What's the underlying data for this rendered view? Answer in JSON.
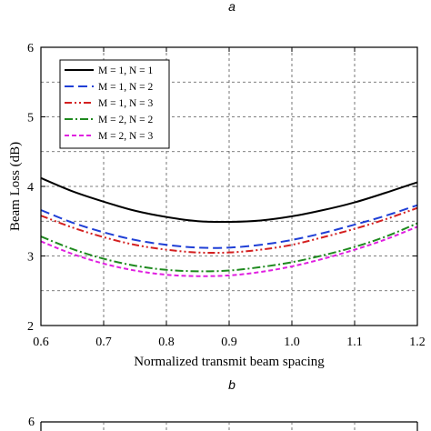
{
  "panel_labels": {
    "top": "a",
    "bottom": "b"
  },
  "chart_data": [
    {
      "type": "line",
      "title": "",
      "xlabel": "Normalized transmit beam spacing",
      "ylabel": "Beam Loss (dB)",
      "xlim": [
        0.6,
        1.2
      ],
      "ylim": [
        2,
        6
      ],
      "xticks": [
        "0.6",
        "0.7",
        "0.8",
        "0.9",
        "1.0",
        "1.1",
        "1.2"
      ],
      "yticks": [
        "2",
        "3",
        "4",
        "5",
        "6"
      ],
      "grid": true,
      "legend_position": "top-left",
      "series": [
        {
          "name": "M = 1, N = 1",
          "color": "#000000",
          "dash": "solid",
          "x": [
            0.6,
            0.65,
            0.7,
            0.75,
            0.8,
            0.85,
            0.9,
            0.95,
            1.0,
            1.05,
            1.1,
            1.15,
            1.2
          ],
          "y": [
            4.12,
            3.93,
            3.78,
            3.65,
            3.56,
            3.5,
            3.49,
            3.51,
            3.57,
            3.66,
            3.77,
            3.91,
            4.06
          ]
        },
        {
          "name": "M = 1, N = 2",
          "color": "#1f3fd6",
          "dash": "dashed",
          "x": [
            0.6,
            0.65,
            0.7,
            0.75,
            0.8,
            0.85,
            0.9,
            0.95,
            1.0,
            1.05,
            1.1,
            1.15,
            1.2
          ],
          "y": [
            3.66,
            3.48,
            3.34,
            3.23,
            3.16,
            3.12,
            3.12,
            3.16,
            3.23,
            3.33,
            3.45,
            3.58,
            3.73
          ]
        },
        {
          "name": "M = 1, N = 3",
          "color": "#d42020",
          "dash": "dashdotdot",
          "x": [
            0.6,
            0.65,
            0.7,
            0.75,
            0.8,
            0.85,
            0.9,
            0.95,
            1.0,
            1.05,
            1.1,
            1.15,
            1.2
          ],
          "y": [
            3.58,
            3.41,
            3.27,
            3.16,
            3.09,
            3.05,
            3.05,
            3.09,
            3.16,
            3.27,
            3.39,
            3.53,
            3.69
          ]
        },
        {
          "name": "M = 2, N = 2",
          "color": "#1f8a1f",
          "dash": "dashdot",
          "x": [
            0.6,
            0.65,
            0.7,
            0.75,
            0.8,
            0.85,
            0.9,
            0.95,
            1.0,
            1.05,
            1.1,
            1.15,
            1.2
          ],
          "y": [
            3.28,
            3.1,
            2.96,
            2.86,
            2.8,
            2.78,
            2.79,
            2.84,
            2.91,
            3.01,
            3.13,
            3.28,
            3.47
          ]
        },
        {
          "name": "M = 2, N = 3",
          "color": "#e020e0",
          "dash": "shortdash",
          "x": [
            0.6,
            0.65,
            0.7,
            0.75,
            0.8,
            0.85,
            0.9,
            0.95,
            1.0,
            1.05,
            1.1,
            1.15,
            1.2
          ],
          "y": [
            3.21,
            3.03,
            2.89,
            2.79,
            2.73,
            2.71,
            2.72,
            2.77,
            2.85,
            2.96,
            3.09,
            3.24,
            3.42
          ]
        }
      ]
    },
    {
      "type": "line",
      "title": "",
      "yticks": [
        "6"
      ]
    }
  ]
}
